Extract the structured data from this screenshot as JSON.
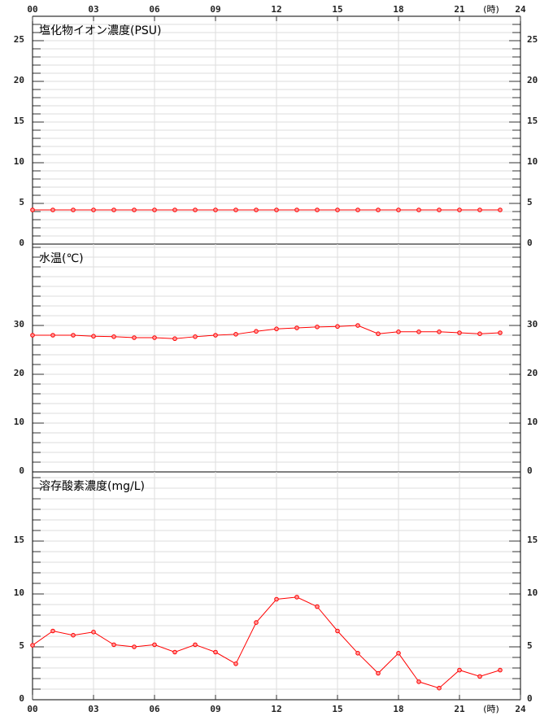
{
  "chart_data": [
    {
      "type": "line",
      "title": "塩化物イオン濃度(PSU)",
      "xlabel": "(時)",
      "x": [
        0,
        1,
        2,
        3,
        4,
        5,
        6,
        7,
        8,
        9,
        10,
        11,
        12,
        13,
        14,
        15,
        16,
        17,
        18,
        19,
        20,
        21,
        22,
        23
      ],
      "xlim": [
        0,
        24
      ],
      "xticks": [
        {
          "value": 0,
          "label": "00"
        },
        {
          "value": 3,
          "label": "03"
        },
        {
          "value": 6,
          "label": "06"
        },
        {
          "value": 9,
          "label": "09"
        },
        12,
        15,
        18,
        21,
        24
      ],
      "ylim": [
        0,
        28
      ],
      "yticks": [
        0,
        5,
        10,
        15,
        20,
        25
      ],
      "grid": true,
      "series": [
        {
          "color": "#ff0000",
          "values": [
            4.2,
            4.2,
            4.2,
            4.2,
            4.2,
            4.2,
            4.2,
            4.2,
            4.2,
            4.2,
            4.2,
            4.2,
            4.2,
            4.2,
            4.2,
            4.2,
            4.2,
            4.2,
            4.2,
            4.2,
            4.2,
            4.2,
            4.2,
            4.2
          ]
        }
      ]
    },
    {
      "type": "line",
      "title": "水温(℃)",
      "x": [
        0,
        1,
        2,
        3,
        4,
        5,
        6,
        7,
        8,
        9,
        10,
        11,
        12,
        13,
        14,
        15,
        16,
        17,
        18,
        19,
        20,
        21,
        22,
        23
      ],
      "xlim": [
        0,
        24
      ],
      "ylim": [
        0,
        46.67
      ],
      "yticks": [
        0,
        10,
        20,
        30
      ],
      "grid": true,
      "series": [
        {
          "color": "#ff0000",
          "values": [
            28.0,
            28.0,
            28.0,
            27.8,
            27.7,
            27.5,
            27.5,
            27.3,
            27.7,
            28.0,
            28.2,
            28.8,
            29.3,
            29.5,
            29.7,
            29.8,
            30.0,
            28.3,
            28.7,
            28.7,
            28.7,
            28.5,
            28.3,
            28.5
          ]
        }
      ]
    },
    {
      "type": "line",
      "title": "溶存酸素濃度(mg/L)",
      "xlabel": "(時)",
      "x": [
        0,
        1,
        2,
        3,
        4,
        5,
        6,
        7,
        8,
        9,
        10,
        11,
        12,
        13,
        14,
        15,
        16,
        17,
        18,
        19,
        20,
        21,
        22,
        23
      ],
      "xlim": [
        0,
        24
      ],
      "xticks": [
        {
          "value": 0,
          "label": "00"
        },
        {
          "value": 3,
          "label": "03"
        },
        {
          "value": 6,
          "label": "06"
        },
        {
          "value": 9,
          "label": "09"
        },
        12,
        15,
        18,
        21,
        24
      ],
      "ylim": [
        0,
        21.54
      ],
      "yticks": [
        0,
        5,
        10,
        15
      ],
      "grid": true,
      "series": [
        {
          "color": "#ff0000",
          "values": [
            5.15,
            6.5,
            6.1,
            6.4,
            5.2,
            5.0,
            5.2,
            4.5,
            5.2,
            4.5,
            3.4,
            7.3,
            9.5,
            9.7,
            8.8,
            6.5,
            4.4,
            2.5,
            4.4,
            1.7,
            1.1,
            2.8,
            2.2,
            2.8
          ]
        }
      ]
    }
  ]
}
